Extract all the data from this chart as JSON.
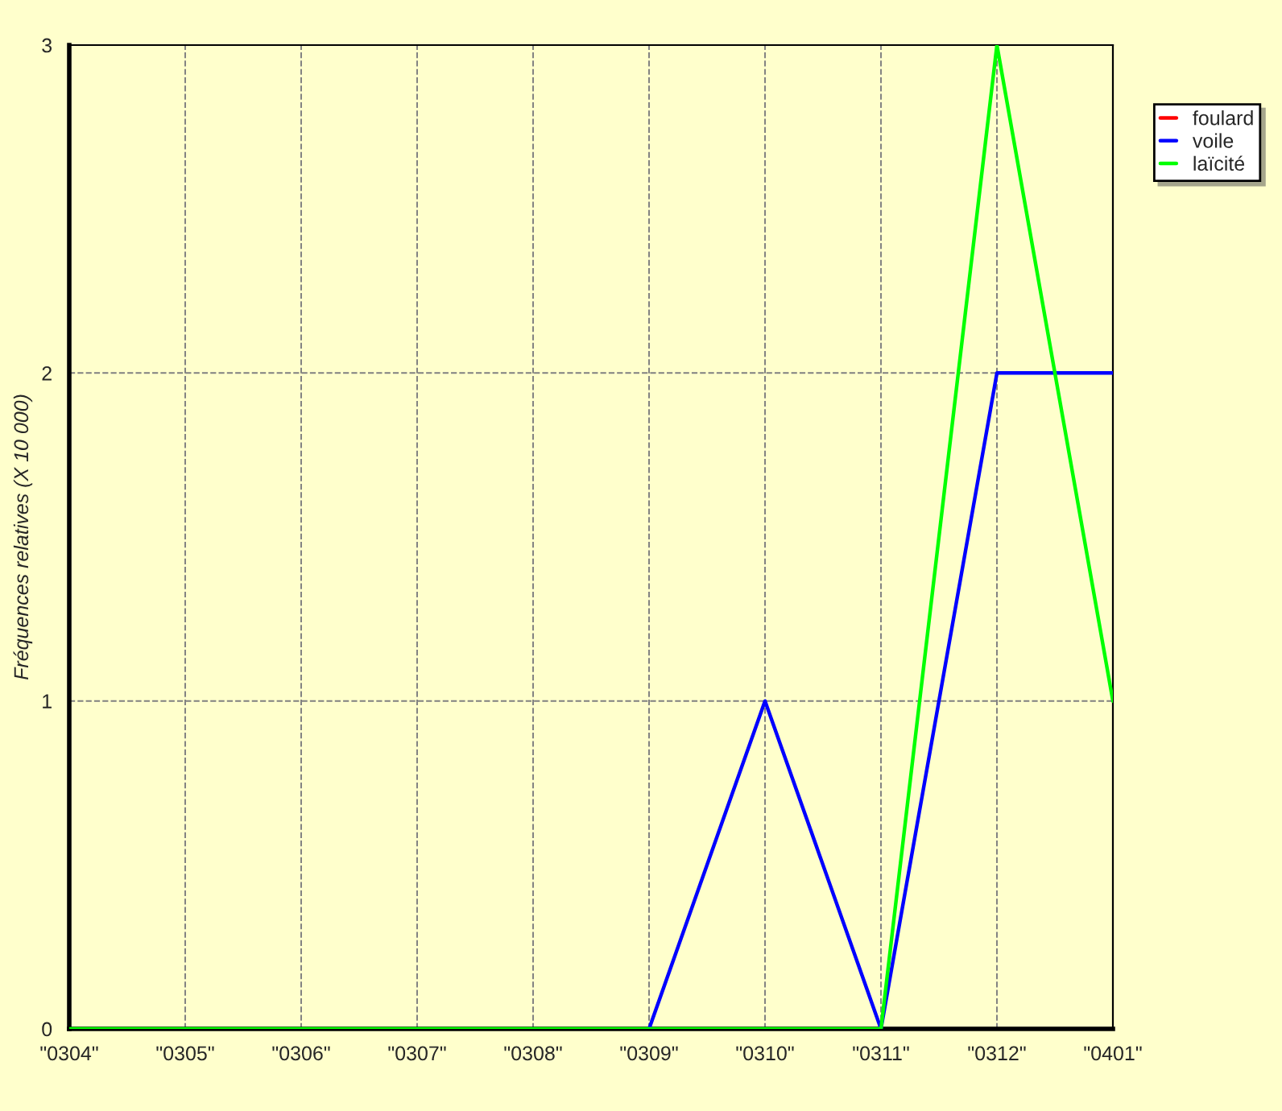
{
  "chart_data": {
    "type": "line",
    "ylabel": "Fréquences relatives (X 10 000)",
    "categories": [
      "\"0304\"",
      "\"0305\"",
      "\"0306\"",
      "\"0307\"",
      "\"0308\"",
      "\"0309\"",
      "\"0310\"",
      "\"0311\"",
      "\"0312\"",
      "\"0401\""
    ],
    "series": [
      {
        "name": "foulard",
        "color": "#ff0000",
        "values": [
          null,
          null,
          null,
          null,
          null,
          null,
          null,
          null,
          null,
          null
        ]
      },
      {
        "name": "voile",
        "color": "#0000ff",
        "values": [
          null,
          null,
          null,
          null,
          null,
          0,
          1,
          0,
          2,
          2
        ]
      },
      {
        "name": "laïcité",
        "color": "#00ff00",
        "values": [
          0,
          0,
          0,
          0,
          0,
          0,
          0,
          0,
          3,
          1
        ]
      }
    ],
    "ylim": [
      0,
      3
    ],
    "yticks": [
      0,
      1,
      2,
      3
    ],
    "grid": true,
    "legend": "top right",
    "line_style": "solid",
    "marker": "none"
  }
}
